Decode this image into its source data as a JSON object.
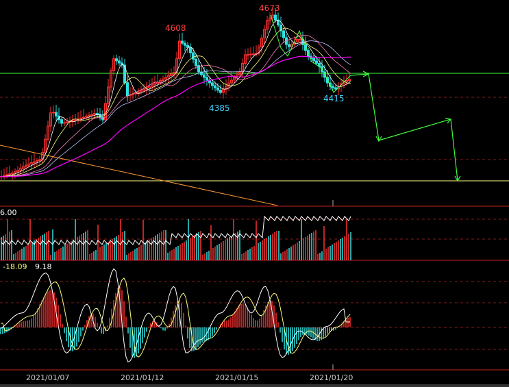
{
  "chart_data": [
    {
      "type": "candlestick",
      "panel": "price",
      "x": [
        "2021/01/07",
        "2021/01/12",
        "2021/01/15",
        "2021/01/20"
      ],
      "annotations": [
        {
          "label": "4608",
          "value": 4608,
          "kind": "high",
          "color": "#ff4040"
        },
        {
          "label": "4673",
          "value": 4673,
          "kind": "high",
          "color": "#ff4040"
        },
        {
          "label": "4385",
          "value": 4385,
          "kind": "low",
          "color": "#40d0ff"
        },
        {
          "label": "4415",
          "value": 4415,
          "kind": "low",
          "color": "#40d0ff"
        }
      ],
      "colors": {
        "up": "#ff3030",
        "down": "#30e0e0",
        "ma_long": "#ff00ff",
        "trend": "#40ff40",
        "support": "#ffff80",
        "downtrend": "#ff9933"
      }
    },
    {
      "type": "bar",
      "panel": "volume",
      "scale_label": "6.00"
    },
    {
      "type": "bar",
      "panel": "macd",
      "values_label": [
        "-18.09",
        "9.18"
      ]
    }
  ],
  "axis": {
    "dates": [
      "2021/01/07",
      "2021/01/12",
      "2021/01/15",
      "2021/01/20"
    ]
  }
}
